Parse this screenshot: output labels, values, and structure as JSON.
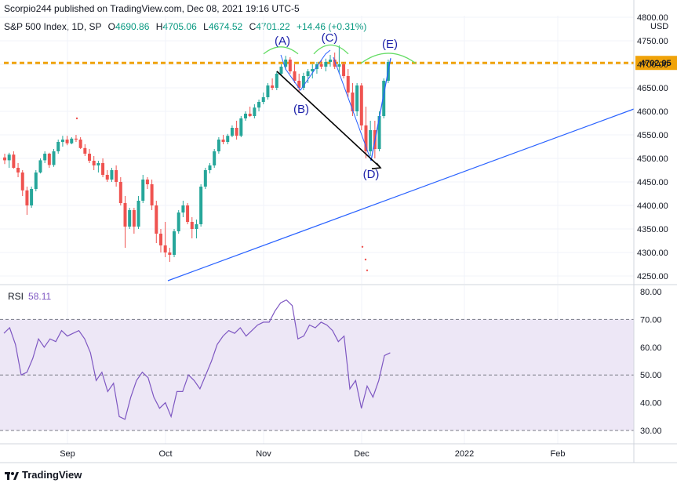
{
  "header": {
    "publisher": "Scorpio244 published on TradingView.com, Dec 08, 2021 19:16 UTC-5"
  },
  "legend": {
    "symbol": "S&P 500 Index, 1D, SP",
    "open_key": "O",
    "open": "4690.86",
    "high_key": "H",
    "high": "4705.06",
    "low_key": "L",
    "low": "4674.52",
    "close_key": "C",
    "close": "4701.22",
    "change": "+14.46 (+0.31%)"
  },
  "footer": {
    "brand": "TradingView"
  },
  "colors": {
    "up": "#26a69a",
    "down": "#ef5350",
    "rsi_line": "#7e57c2",
    "rsi_band": "#ede7f6",
    "trendline": "#2962ff",
    "resistance": "#f0a30a",
    "price_label_bg": "#f0a30a",
    "arc": "#66dd66",
    "wave_label": "#1e22aa"
  },
  "chart_data": [
    {
      "type": "candlestick",
      "title": "S&P 500 Index, 1D, SP",
      "currency_label": "USD",
      "y_ticks": [
        "4800.00",
        "4750.00",
        "4700.00",
        "4650.00",
        "4600.00",
        "4550.00",
        "4500.00",
        "4450.00",
        "4400.00",
        "4350.00",
        "4300.00",
        "4250.00"
      ],
      "ylim": [
        4235,
        4810
      ],
      "x_ticks": [
        "Sep",
        "Oct",
        "Nov",
        "Dec",
        "2022",
        "Feb"
      ],
      "last_price_label": "4702.95",
      "resistance_level": 4702.95,
      "trendline": {
        "from": [
          "2021-10-01",
          4240
        ],
        "to": [
          "2022-03-01",
          4605
        ]
      },
      "wave_labels": [
        "(A)",
        "(B)",
        "(C)",
        "(D)",
        "(E)"
      ],
      "candles": [
        [
          4502,
          4510,
          4488,
          4496
        ],
        [
          4496,
          4512,
          4480,
          4508
        ],
        [
          4508,
          4515,
          4478,
          4480
        ],
        [
          4480,
          4490,
          4460,
          4470
        ],
        [
          4470,
          4475,
          4420,
          4432
        ],
        [
          4432,
          4440,
          4380,
          4400
        ],
        [
          4400,
          4440,
          4395,
          4435
        ],
        [
          4435,
          4475,
          4430,
          4470
        ],
        [
          4470,
          4500,
          4468,
          4496
        ],
        [
          4496,
          4515,
          4490,
          4510
        ],
        [
          4510,
          4512,
          4480,
          4486
        ],
        [
          4486,
          4520,
          4482,
          4515
        ],
        [
          4515,
          4540,
          4510,
          4535
        ],
        [
          4535,
          4548,
          4525,
          4540
        ],
        [
          4540,
          4548,
          4528,
          4532
        ],
        [
          4532,
          4545,
          4530,
          4542
        ],
        [
          4542,
          4550,
          4535,
          4540
        ],
        [
          4540,
          4545,
          4520,
          4522
        ],
        [
          4522,
          4530,
          4505,
          4510
        ],
        [
          4510,
          4520,
          4490,
          4495
        ],
        [
          4495,
          4505,
          4475,
          4485
        ],
        [
          4485,
          4495,
          4470,
          4490
        ],
        [
          4490,
          4500,
          4460,
          4465
        ],
        [
          4465,
          4475,
          4450,
          4455
        ],
        [
          4455,
          4480,
          4450,
          4475
        ],
        [
          4475,
          4485,
          4440,
          4450
        ],
        [
          4450,
          4460,
          4400,
          4405
        ],
        [
          4405,
          4420,
          4310,
          4355
        ],
        [
          4355,
          4395,
          4350,
          4390
        ],
        [
          4390,
          4395,
          4340,
          4355
        ],
        [
          4355,
          4420,
          4350,
          4410
        ],
        [
          4410,
          4465,
          4405,
          4455
        ],
        [
          4455,
          4460,
          4435,
          4445
        ],
        [
          4445,
          4455,
          4390,
          4400
        ],
        [
          4400,
          4410,
          4320,
          4340
        ],
        [
          4340,
          4350,
          4300,
          4315
        ],
        [
          4315,
          4365,
          4290,
          4300
        ],
        [
          4300,
          4310,
          4280,
          4295
        ],
        [
          4295,
          4350,
          4290,
          4345
        ],
        [
          4345,
          4390,
          4340,
          4385
        ],
        [
          4385,
          4410,
          4375,
          4400
        ],
        [
          4400,
          4405,
          4360,
          4365
        ],
        [
          4365,
          4375,
          4330,
          4350
        ],
        [
          4350,
          4370,
          4330,
          4360
        ],
        [
          4360,
          4445,
          4355,
          4440
        ],
        [
          4440,
          4480,
          4435,
          4475
        ],
        [
          4475,
          4490,
          4468,
          4485
        ],
        [
          4485,
          4520,
          4480,
          4515
        ],
        [
          4515,
          4545,
          4510,
          4540
        ],
        [
          4540,
          4550,
          4530,
          4535
        ],
        [
          4535,
          4552,
          4530,
          4548
        ],
        [
          4548,
          4570,
          4545,
          4565
        ],
        [
          4565,
          4580,
          4540,
          4548
        ],
        [
          4548,
          4590,
          4545,
          4585
        ],
        [
          4585,
          4600,
          4580,
          4595
        ],
        [
          4595,
          4610,
          4588,
          4590
        ],
        [
          4590,
          4615,
          4585,
          4608
        ],
        [
          4608,
          4625,
          4600,
          4620
        ],
        [
          4620,
          4640,
          4615,
          4630
        ],
        [
          4630,
          4660,
          4625,
          4655
        ],
        [
          4655,
          4670,
          4645,
          4650
        ],
        [
          4650,
          4685,
          4645,
          4680
        ],
        [
          4680,
          4700,
          4675,
          4695
        ],
        [
          4695,
          4718,
          4688,
          4710
        ],
        [
          4710,
          4715,
          4680,
          4685
        ],
        [
          4685,
          4700,
          4660,
          4665
        ],
        [
          4665,
          4680,
          4640,
          4650
        ],
        [
          4650,
          4682,
          4645,
          4675
        ],
        [
          4675,
          4690,
          4660,
          4685
        ],
        [
          4685,
          4700,
          4670,
          4690
        ],
        [
          4690,
          4705,
          4680,
          4700
        ],
        [
          4700,
          4710,
          4690,
          4695
        ],
        [
          4695,
          4712,
          4685,
          4705
        ],
        [
          4705,
          4720,
          4695,
          4710
        ],
        [
          4710,
          4725,
          4690,
          4695
        ],
        [
          4695,
          4740,
          4680,
          4700
        ],
        [
          4700,
          4705,
          4670,
          4675
        ],
        [
          4675,
          4690,
          4630,
          4640
        ],
        [
          4640,
          4660,
          4590,
          4600
        ],
        [
          4600,
          4660,
          4590,
          4655
        ],
        [
          4655,
          4660,
          4560,
          4570
        ],
        [
          4570,
          4610,
          4500,
          4515
        ],
        [
          4515,
          4580,
          4505,
          4560
        ],
        [
          4560,
          4580,
          4500,
          4520
        ],
        [
          4520,
          4600,
          4515,
          4590
        ],
        [
          4590,
          4670,
          4585,
          4665
        ],
        [
          4665,
          4710,
          4660,
          4705
        ]
      ],
      "outlier_dots": [
        4585,
        4312,
        4285,
        4262
      ]
    },
    {
      "type": "line",
      "title": "RSI",
      "last_value": "58.11",
      "y_ticks": [
        "80.00",
        "70.00",
        "60.00",
        "50.00",
        "40.00",
        "30.00"
      ],
      "ylim": [
        27,
        82
      ],
      "bands": {
        "upper": 70,
        "middle": 50,
        "lower": 30
      },
      "values": [
        65,
        67,
        61,
        50,
        51,
        56,
        63,
        60,
        63,
        62,
        66,
        64,
        65,
        66,
        63,
        58,
        48,
        51,
        44,
        47,
        35,
        34,
        42,
        48,
        51,
        49,
        42,
        38,
        40,
        35,
        44,
        44,
        50,
        48,
        45,
        50,
        55,
        61,
        64,
        66,
        65,
        67,
        64,
        66,
        68,
        69,
        69,
        73,
        76,
        77,
        75,
        63,
        64,
        68,
        67,
        69,
        68,
        66,
        62,
        64,
        45,
        48,
        38,
        46,
        42,
        48,
        57,
        58
      ]
    }
  ]
}
